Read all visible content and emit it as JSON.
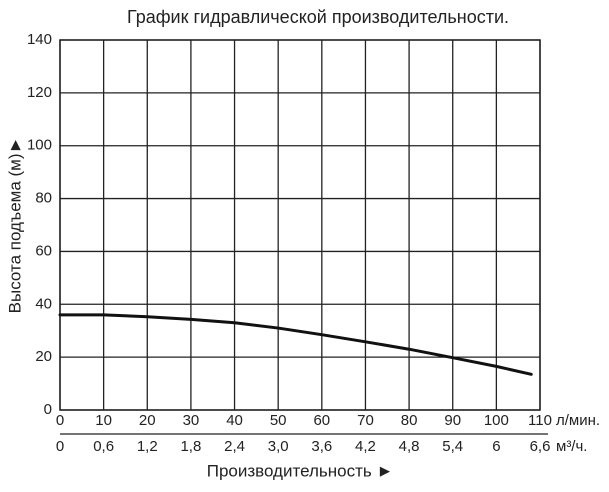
{
  "chart_data": {
    "type": "line",
    "title": "График гидравлической производительности.",
    "y_label": "Высота подъема (м)►",
    "x_label": "Производительность ►",
    "x_unit": "л/мин.",
    "x2_unit": "м³/ч.",
    "xlim": [
      0,
      110
    ],
    "xticks": [
      0,
      10,
      20,
      30,
      40,
      50,
      60,
      70,
      80,
      90,
      100,
      110
    ],
    "x2lim": [
      0,
      6.6
    ],
    "x2ticks": [
      0,
      {
        "value": 0.6,
        "label": "0,6"
      },
      {
        "value": 1.2,
        "label": "1,2"
      },
      {
        "value": 1.8,
        "label": "1,8"
      },
      {
        "value": 2.4,
        "label": "2,4"
      },
      {
        "value": 3.0,
        "label": "3,0"
      },
      {
        "value": 3.6,
        "label": "3,6"
      },
      {
        "value": 4.2,
        "label": "4,2"
      },
      {
        "value": 4.8,
        "label": "4,8"
      },
      {
        "value": 5.4,
        "label": "5,4"
      },
      6,
      {
        "value": 6.6,
        "label": "6,6"
      }
    ],
    "ylim": [
      0,
      140
    ],
    "yticks": [
      0,
      20,
      40,
      60,
      80,
      100,
      120,
      140
    ],
    "grid": true,
    "series": [
      {
        "color": "#111111",
        "x": [
          0,
          10,
          20,
          30,
          40,
          50,
          60,
          70,
          80,
          90,
          100,
          108
        ],
        "values": [
          36,
          36,
          35.3,
          34.3,
          33,
          31,
          28.5,
          25.8,
          23,
          19.8,
          16.5,
          13.5
        ]
      }
    ]
  }
}
